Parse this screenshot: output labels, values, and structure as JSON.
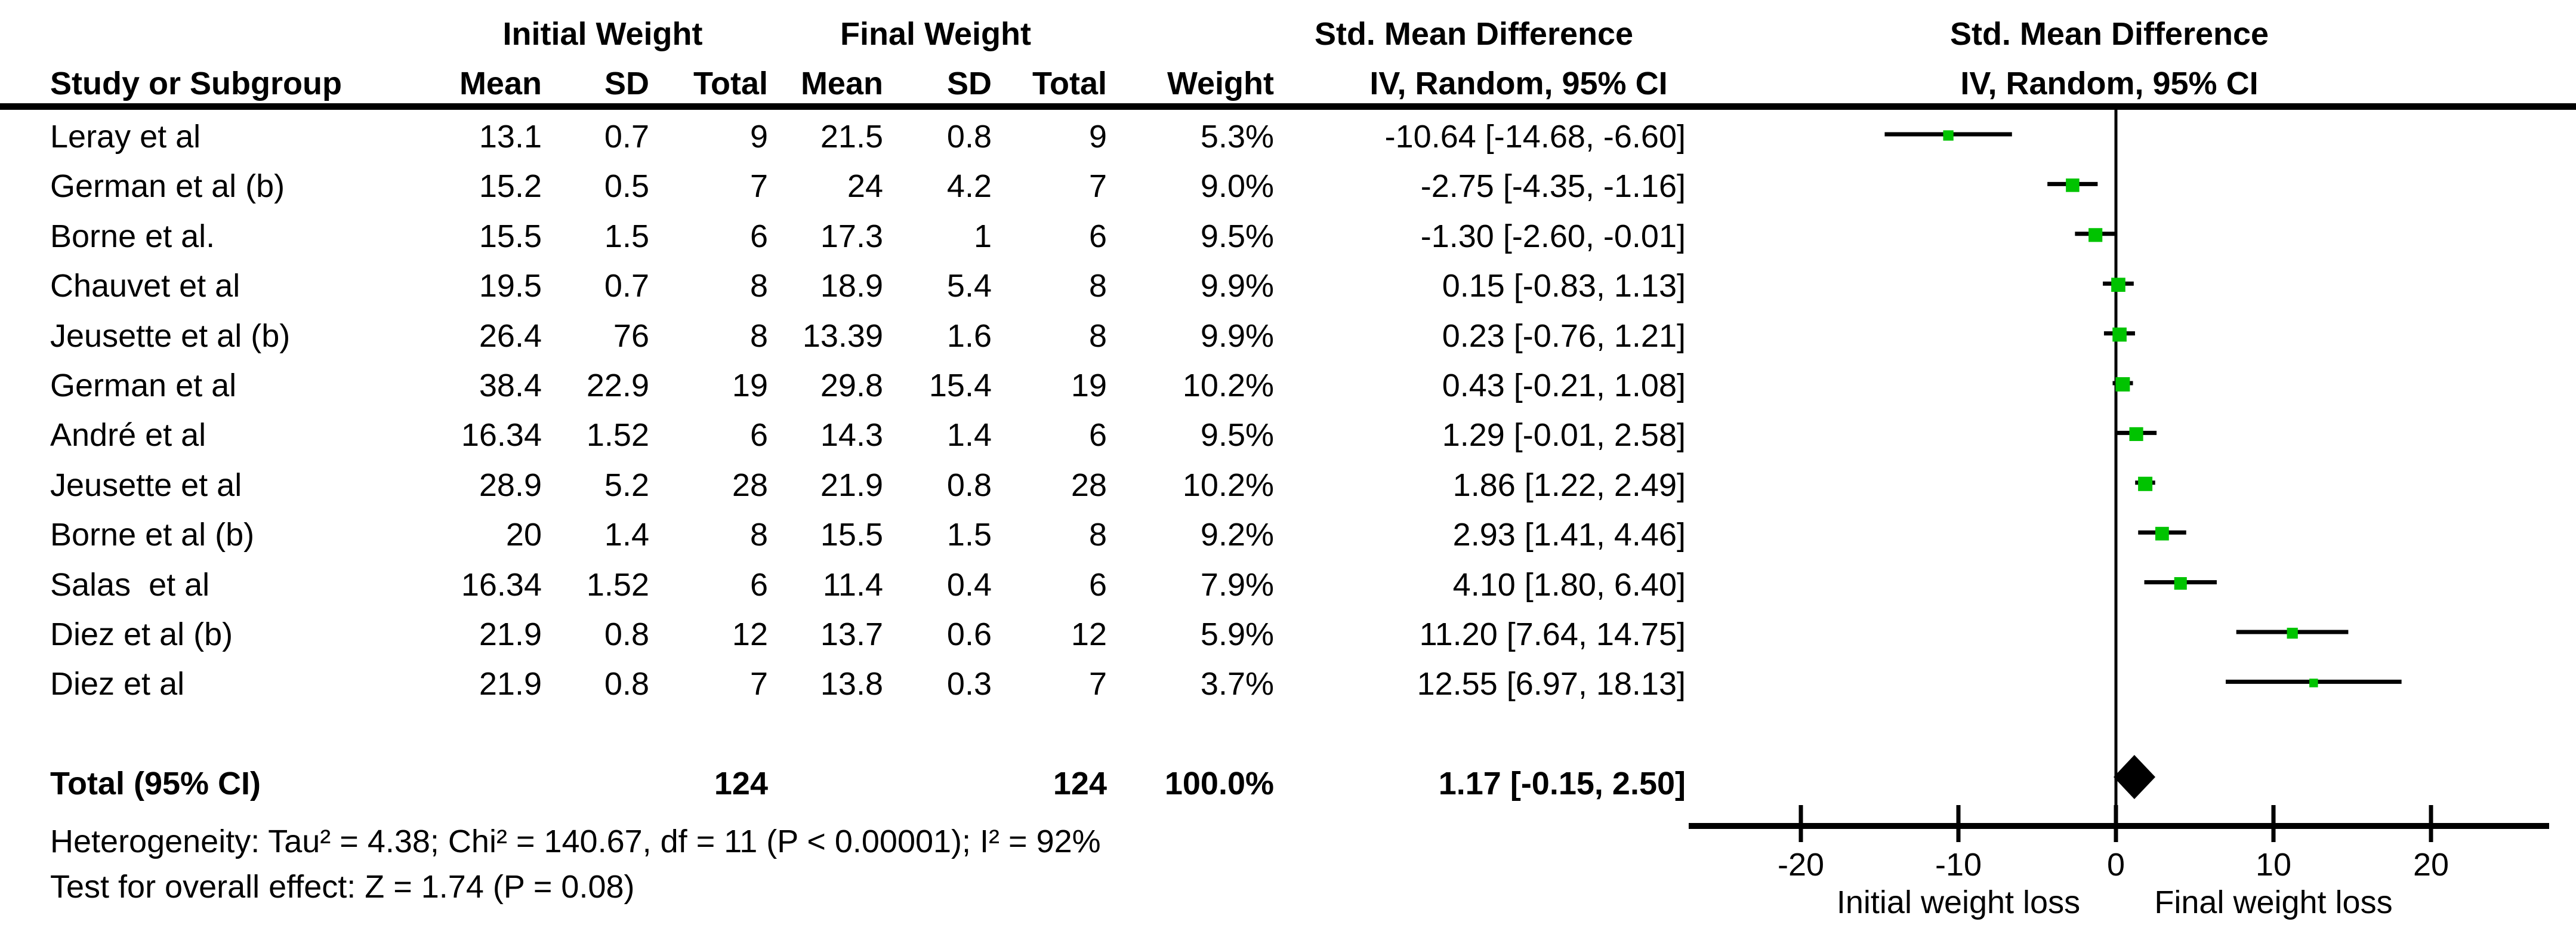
{
  "table": {
    "group_headers": {
      "initial": "Initial Weight",
      "final": "Final Weight",
      "smd": "Std. Mean Difference"
    },
    "col_headers": {
      "study": "Study or Subgroup",
      "mean": "Mean",
      "sd": "SD",
      "total": "Total",
      "weight": "Weight",
      "iv": "IV, Random, 95% CI"
    },
    "rows": [
      {
        "study": "Leray et al",
        "mean1": "13.1",
        "sd1": "0.7",
        "total1": "9",
        "mean2": "21.5",
        "sd2": "0.8",
        "total2": "9",
        "weight": "5.3%",
        "ci": "-10.64 [-14.68, -6.60]"
      },
      {
        "study": "German et al (b)",
        "mean1": "15.2",
        "sd1": "0.5",
        "total1": "7",
        "mean2": "24",
        "sd2": "4.2",
        "total2": "7",
        "weight": "9.0%",
        "ci": "-2.75 [-4.35, -1.16]"
      },
      {
        "study": "Borne et al.",
        "mean1": "15.5",
        "sd1": "1.5",
        "total1": "6",
        "mean2": "17.3",
        "sd2": "1",
        "total2": "6",
        "weight": "9.5%",
        "ci": "-1.30 [-2.60, -0.01]"
      },
      {
        "study": "Chauvet et al",
        "mean1": "19.5",
        "sd1": "0.7",
        "total1": "8",
        "mean2": "18.9",
        "sd2": "5.4",
        "total2": "8",
        "weight": "9.9%",
        "ci": "0.15 [-0.83, 1.13]"
      },
      {
        "study": "Jeusette et al (b)",
        "mean1": "26.4",
        "sd1": "76",
        "total1": "8",
        "mean2": "13.39",
        "sd2": "1.6",
        "total2": "8",
        "weight": "9.9%",
        "ci": "0.23 [-0.76, 1.21]"
      },
      {
        "study": "German et al",
        "mean1": "38.4",
        "sd1": "22.9",
        "total1": "19",
        "mean2": "29.8",
        "sd2": "15.4",
        "total2": "19",
        "weight": "10.2%",
        "ci": "0.43 [-0.21, 1.08]"
      },
      {
        "study": "André et al",
        "mean1": "16.34",
        "sd1": "1.52",
        "total1": "6",
        "mean2": "14.3",
        "sd2": "1.4",
        "total2": "6",
        "weight": "9.5%",
        "ci": "1.29 [-0.01, 2.58]"
      },
      {
        "study": "Jeusette et al",
        "mean1": "28.9",
        "sd1": "5.2",
        "total1": "28",
        "mean2": "21.9",
        "sd2": "0.8",
        "total2": "28",
        "weight": "10.2%",
        "ci": "1.86 [1.22, 2.49]"
      },
      {
        "study": "Borne et al (b)",
        "mean1": "20",
        "sd1": "1.4",
        "total1": "8",
        "mean2": "15.5",
        "sd2": "1.5",
        "total2": "8",
        "weight": "9.2%",
        "ci": "2.93 [1.41, 4.46]"
      },
      {
        "study": "Salas  et al",
        "mean1": "16.34",
        "sd1": "1.52",
        "total1": "6",
        "mean2": "11.4",
        "sd2": "0.4",
        "total2": "6",
        "weight": "7.9%",
        "ci": "4.10 [1.80, 6.40]"
      },
      {
        "study": "Diez et al (b)",
        "mean1": "21.9",
        "sd1": "0.8",
        "total1": "12",
        "mean2": "13.7",
        "sd2": "0.6",
        "total2": "12",
        "weight": "5.9%",
        "ci": "11.20 [7.64, 14.75]"
      },
      {
        "study": "Diez et al",
        "mean1": "21.9",
        "sd1": "0.8",
        "total1": "7",
        "mean2": "13.8",
        "sd2": "0.3",
        "total2": "7",
        "weight": "3.7%",
        "ci": "12.55 [6.97, 18.13]"
      }
    ],
    "total_row": {
      "label": "Total (95% CI)",
      "total1": "124",
      "total2": "124",
      "weight": "100.0%",
      "ci": "1.17 [-0.15, 2.50]"
    },
    "heterogeneity": "Heterogeneity: Tau² = 4.38; Chi² = 140.67, df = 11 (P < 0.00001); I² = 92%",
    "overall_effect": "Test for overall effect: Z = 1.74 (P = 0.08)"
  },
  "plot": {
    "header1": "Std. Mean Difference",
    "header2": "IV, Random, 95% CI",
    "axis_ticks": [
      -20,
      -10,
      0,
      10,
      20
    ],
    "axis_labels": {
      "left": "Initial weight loss",
      "right": "Final weight loss"
    },
    "marker_color": "#00c300",
    "line_color": "#000000",
    "diamond_color": "#000000"
  },
  "chart_data": {
    "type": "scatter",
    "subtype": "forest-plot",
    "title": "Std. Mean Difference, IV, Random, 95% CI",
    "xlabel_left": "Initial weight loss",
    "xlabel_right": "Final weight loss",
    "xlim": [
      -27,
      27
    ],
    "x_ticks": [
      -20,
      -10,
      0,
      10,
      20
    ],
    "grid": false,
    "studies": [
      {
        "name": "Leray et al",
        "smd": -10.64,
        "ci_low": -14.68,
        "ci_high": -6.6,
        "weight_pct": 5.3
      },
      {
        "name": "German et al (b)",
        "smd": -2.75,
        "ci_low": -4.35,
        "ci_high": -1.16,
        "weight_pct": 9.0
      },
      {
        "name": "Borne et al.",
        "smd": -1.3,
        "ci_low": -2.6,
        "ci_high": -0.01,
        "weight_pct": 9.5
      },
      {
        "name": "Chauvet et al",
        "smd": 0.15,
        "ci_low": -0.83,
        "ci_high": 1.13,
        "weight_pct": 9.9
      },
      {
        "name": "Jeusette et al (b)",
        "smd": 0.23,
        "ci_low": -0.76,
        "ci_high": 1.21,
        "weight_pct": 9.9
      },
      {
        "name": "German et al",
        "smd": 0.43,
        "ci_low": -0.21,
        "ci_high": 1.08,
        "weight_pct": 10.2
      },
      {
        "name": "André et al",
        "smd": 1.29,
        "ci_low": -0.01,
        "ci_high": 2.58,
        "weight_pct": 9.5
      },
      {
        "name": "Jeusette et al",
        "smd": 1.86,
        "ci_low": 1.22,
        "ci_high": 2.49,
        "weight_pct": 10.2
      },
      {
        "name": "Borne et al (b)",
        "smd": 2.93,
        "ci_low": 1.41,
        "ci_high": 4.46,
        "weight_pct": 9.2
      },
      {
        "name": "Salas  et al",
        "smd": 4.1,
        "ci_low": 1.8,
        "ci_high": 6.4,
        "weight_pct": 7.9
      },
      {
        "name": "Diez et al (b)",
        "smd": 11.2,
        "ci_low": 7.64,
        "ci_high": 14.75,
        "weight_pct": 5.9
      },
      {
        "name": "Diez et al",
        "smd": 12.55,
        "ci_low": 6.97,
        "ci_high": 18.13,
        "weight_pct": 3.7
      }
    ],
    "total": {
      "name": "Total (95% CI)",
      "smd": 1.17,
      "ci_low": -0.15,
      "ci_high": 2.5,
      "weight_pct": 100.0
    },
    "heterogeneity": {
      "tau2": 4.38,
      "chi2": 140.67,
      "df": 11,
      "p": "< 0.00001",
      "i2_pct": 92
    },
    "overall_effect": {
      "z": 1.74,
      "p": 0.08
    }
  }
}
